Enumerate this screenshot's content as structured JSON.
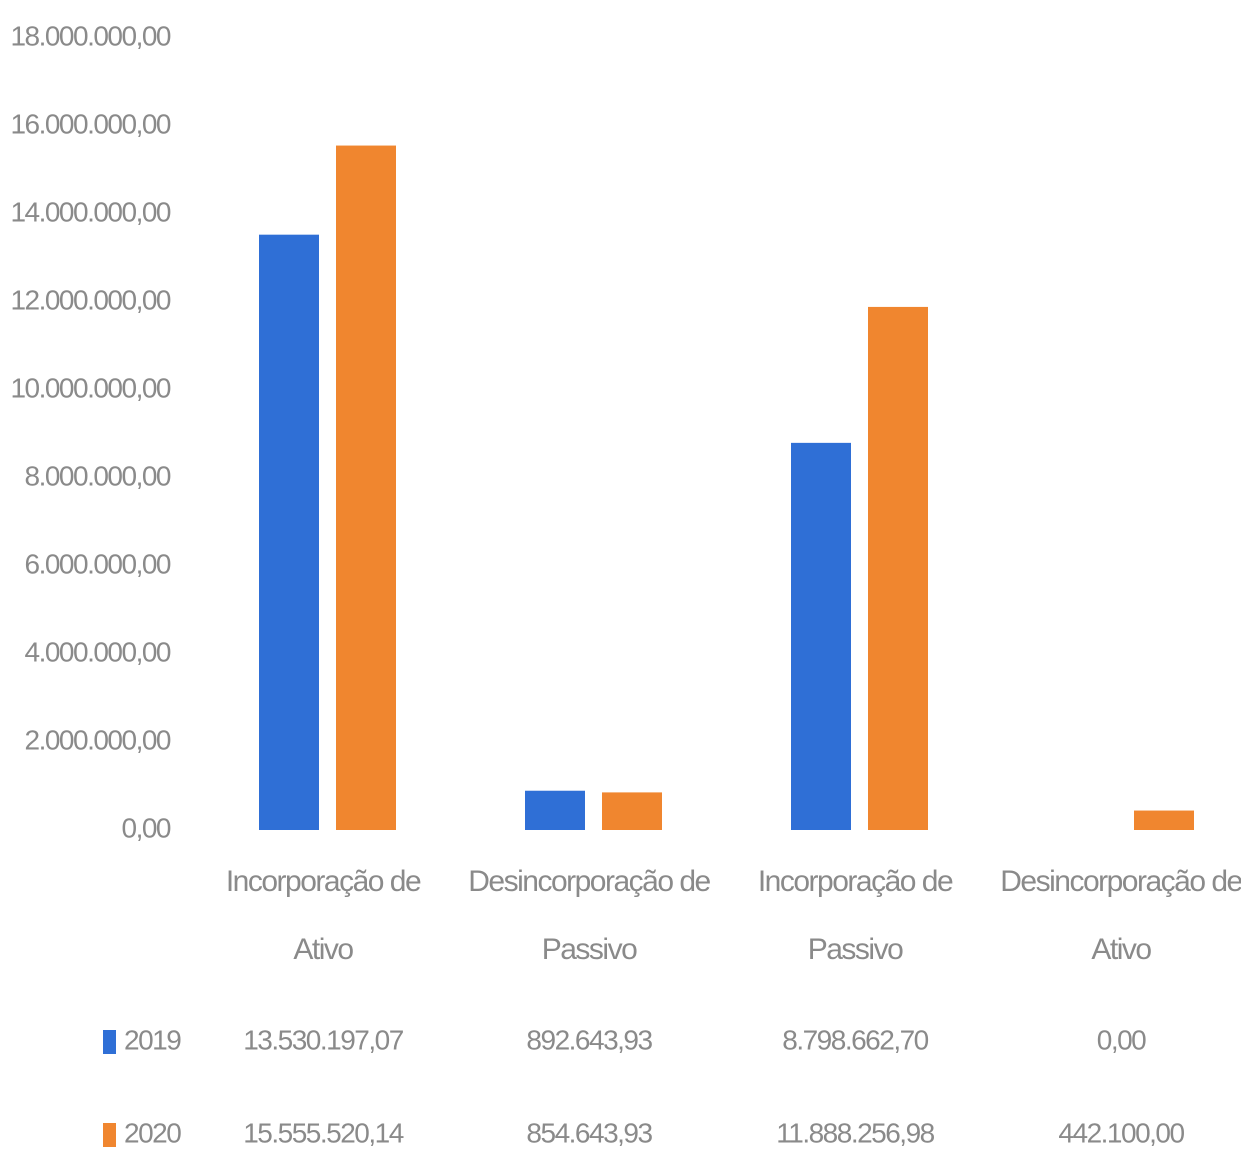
{
  "chart_data": {
    "type": "bar",
    "categories": [
      "Incorporação de Ativo",
      "Desincorporação de Passivo",
      "Incorporação de Passivo",
      "Desincorporação de Ativo"
    ],
    "series": [
      {
        "name": "2019",
        "color": "#2f6fd6",
        "values": [
          13530197.07,
          892643.93,
          8798662.7,
          0
        ],
        "value_labels": [
          "13.530.197,07",
          "892.643,93",
          "8.798.662,70",
          "0,00"
        ]
      },
      {
        "name": "2020",
        "color": "#f0862f",
        "values": [
          15555520.14,
          854643.93,
          11888256.98,
          442100.0
        ],
        "value_labels": [
          "15.555.520,14",
          "854.643,93",
          "11.888.256,98",
          "442.100,00"
        ]
      }
    ],
    "ylim": [
      0,
      18000000
    ],
    "yticks": [
      {
        "value": 0,
        "label": "0,00"
      },
      {
        "value": 2000000,
        "label": "2.000.000,00"
      },
      {
        "value": 4000000,
        "label": "4.000.000,00"
      },
      {
        "value": 6000000,
        "label": "6.000.000,00"
      },
      {
        "value": 8000000,
        "label": "8.000.000,00"
      },
      {
        "value": 10000000,
        "label": "10.000.000,00"
      },
      {
        "value": 12000000,
        "label": "12.000.000,00"
      },
      {
        "value": 14000000,
        "label": "14.000.000,00"
      },
      {
        "value": 16000000,
        "label": "16.000.000,00"
      },
      {
        "value": 18000000,
        "label": "18.000.000,00"
      }
    ],
    "grid": false
  }
}
